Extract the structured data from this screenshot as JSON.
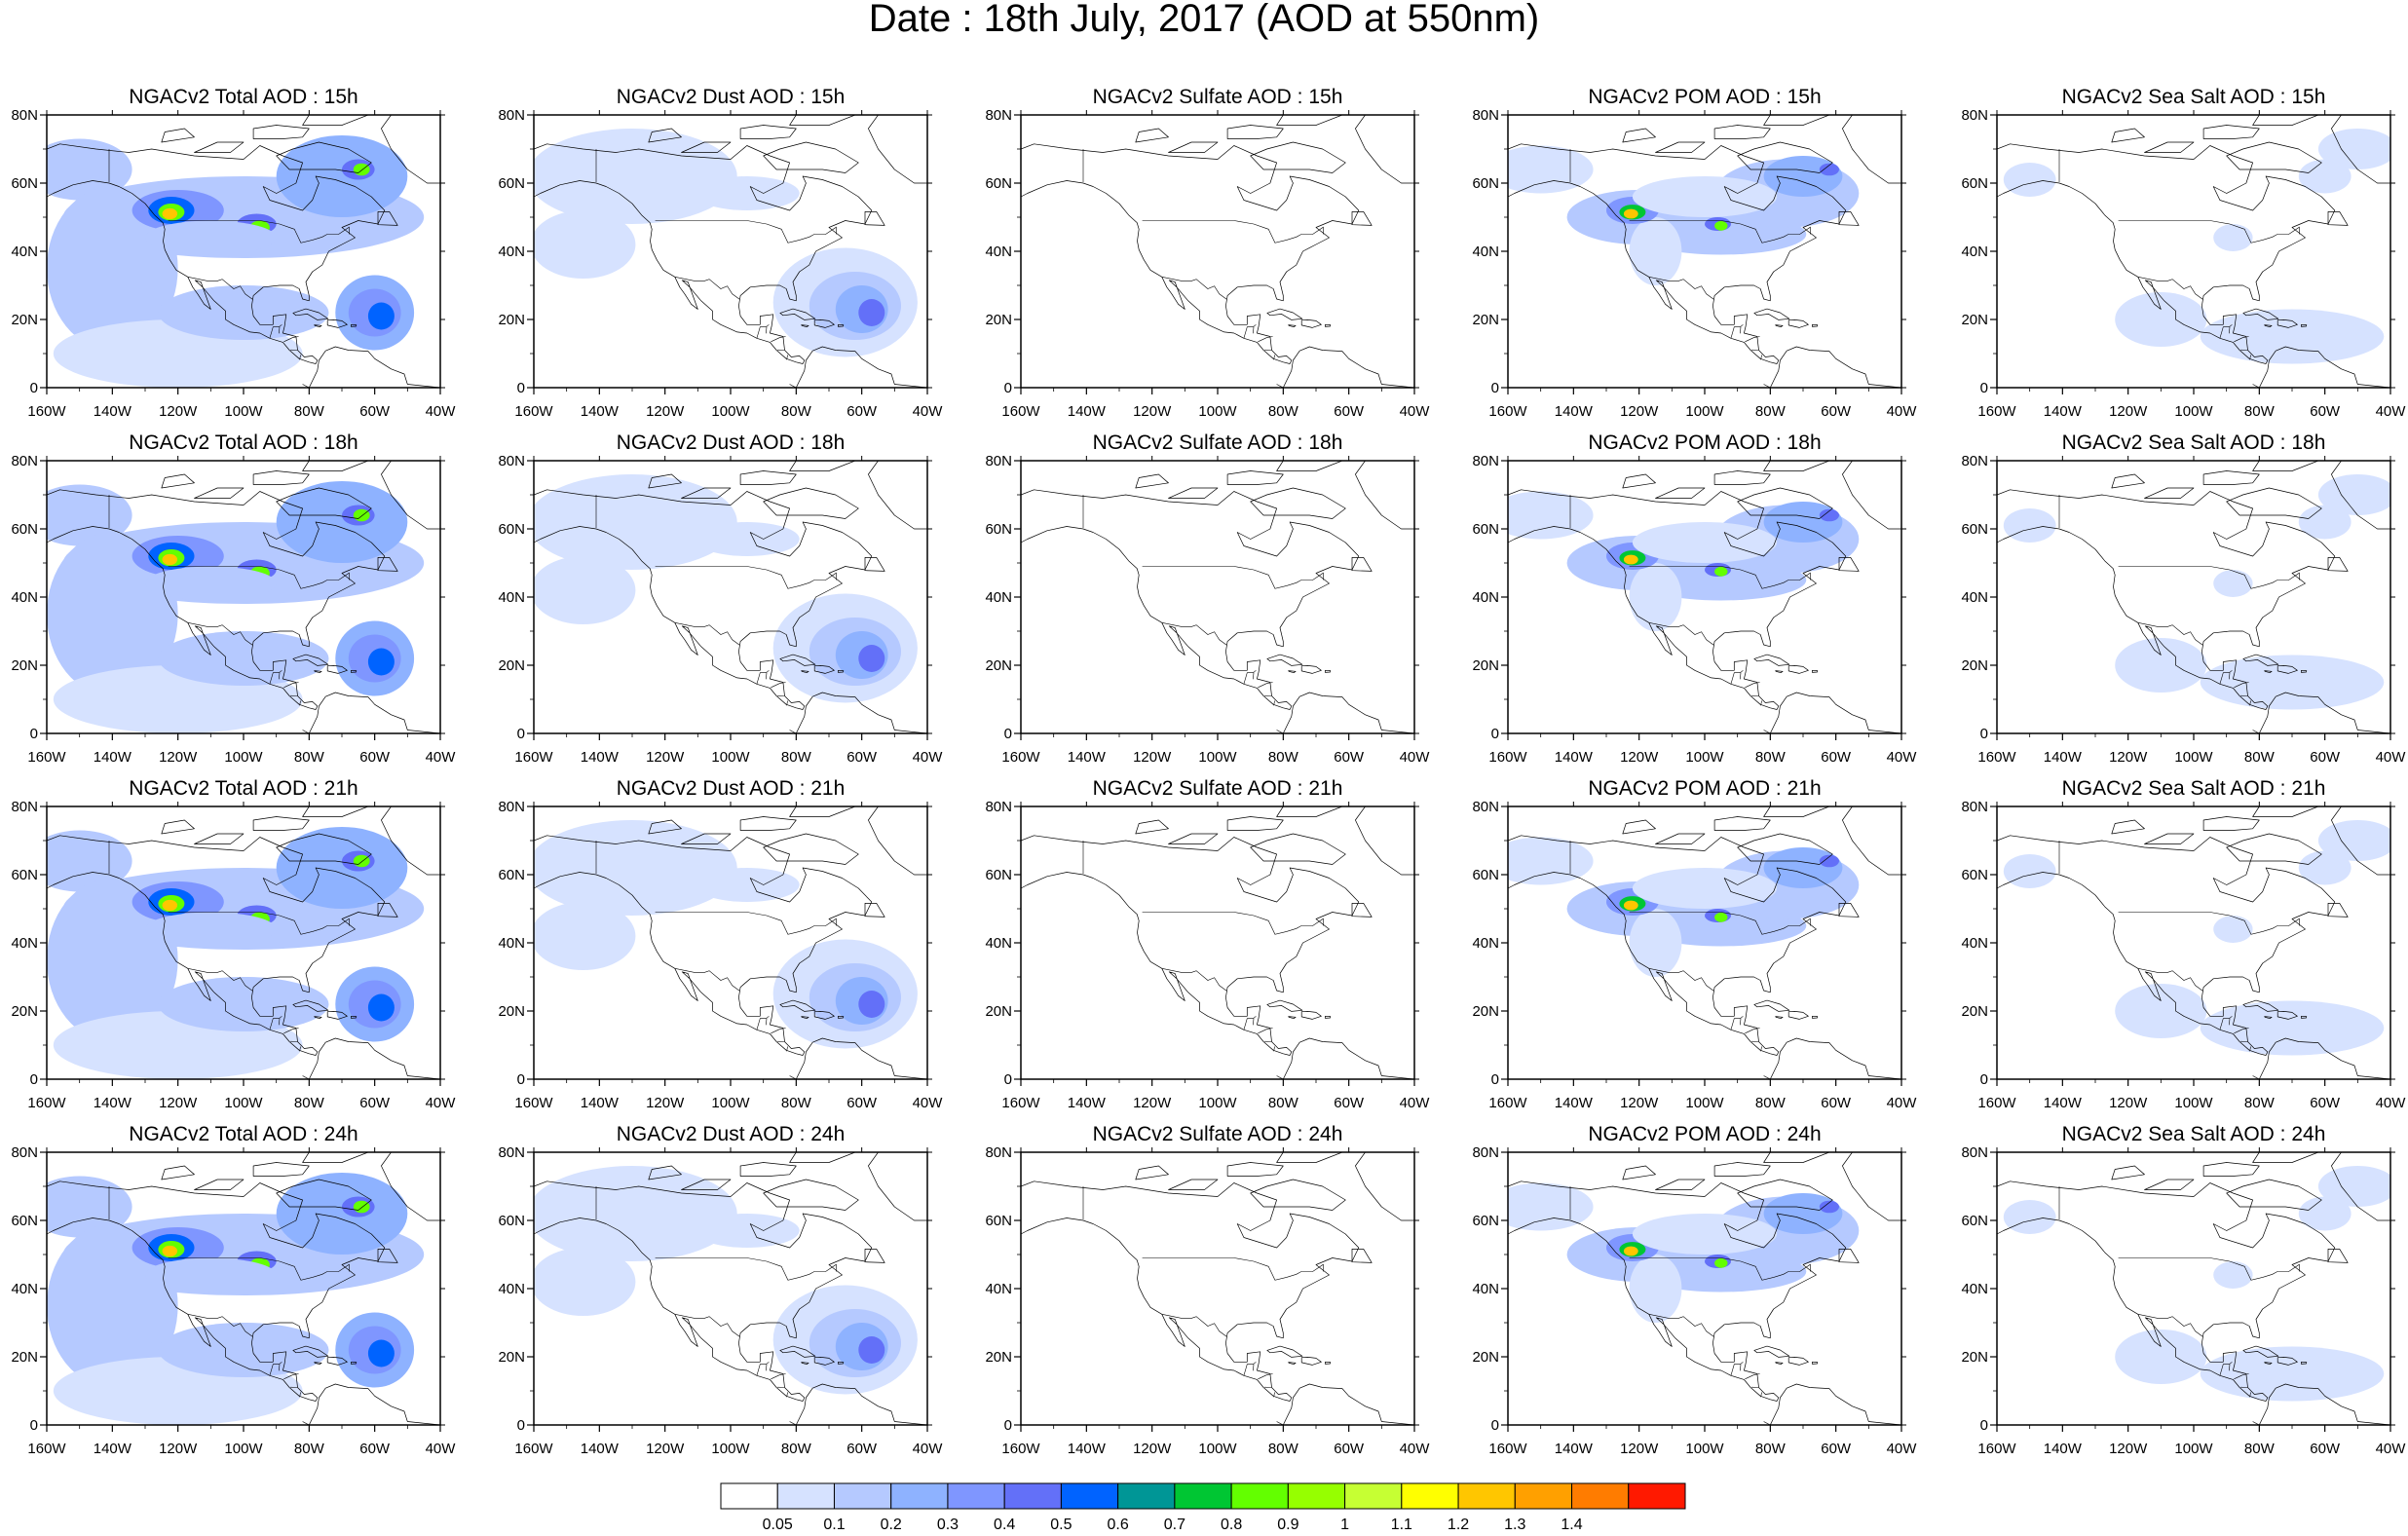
{
  "figure": {
    "title": "Date : 18th July, 2017 (AOD at 550nm)"
  },
  "axes": {
    "lat_ticks": [
      "80N",
      "60N",
      "40N",
      "20N",
      "0"
    ],
    "lon_ticks": [
      "160W",
      "140W",
      "120W",
      "100W",
      "80W",
      "60W",
      "40W"
    ],
    "lat_range": [
      0,
      80
    ],
    "lon_range": [
      -160,
      -40
    ]
  },
  "panels": [
    [
      {
        "title": "NGACv2 Total AOD : 15h",
        "species": "total",
        "hour": 15
      },
      {
        "title": "NGACv2 Dust AOD : 15h",
        "species": "dust",
        "hour": 15
      },
      {
        "title": "NGACv2 Sulfate AOD : 15h",
        "species": "sulfate",
        "hour": 15
      },
      {
        "title": "NGACv2 POM AOD : 15h",
        "species": "pom",
        "hour": 15
      },
      {
        "title": "NGACv2 Sea Salt AOD : 15h",
        "species": "seasalt",
        "hour": 15
      }
    ],
    [
      {
        "title": "NGACv2 Total AOD : 18h",
        "species": "total",
        "hour": 18
      },
      {
        "title": "NGACv2 Dust AOD : 18h",
        "species": "dust",
        "hour": 18
      },
      {
        "title": "NGACv2 Sulfate AOD : 18h",
        "species": "sulfate",
        "hour": 18
      },
      {
        "title": "NGACv2 POM AOD : 18h",
        "species": "pom",
        "hour": 18
      },
      {
        "title": "NGACv2 Sea Salt AOD : 18h",
        "species": "seasalt",
        "hour": 18
      }
    ],
    [
      {
        "title": "NGACv2 Total AOD : 21h",
        "species": "total",
        "hour": 21
      },
      {
        "title": "NGACv2 Dust AOD : 21h",
        "species": "dust",
        "hour": 21
      },
      {
        "title": "NGACv2 Sulfate AOD : 21h",
        "species": "sulfate",
        "hour": 21
      },
      {
        "title": "NGACv2 POM AOD : 21h",
        "species": "pom",
        "hour": 21
      },
      {
        "title": "NGACv2 Sea Salt AOD : 21h",
        "species": "seasalt",
        "hour": 21
      }
    ],
    [
      {
        "title": "NGACv2 Total AOD : 24h",
        "species": "total",
        "hour": 24
      },
      {
        "title": "NGACv2 Dust AOD : 24h",
        "species": "dust",
        "hour": 24
      },
      {
        "title": "NGACv2 Sulfate AOD : 24h",
        "species": "sulfate",
        "hour": 24
      },
      {
        "title": "NGACv2 POM AOD : 24h",
        "species": "pom",
        "hour": 24
      },
      {
        "title": "NGACv2 Sea Salt  AOD : 24h",
        "species": "seasalt",
        "hour": 24
      }
    ]
  ],
  "colorbar": {
    "labels": [
      "0.05",
      "0.1",
      "0.2",
      "0.3",
      "0.4",
      "0.5",
      "0.6",
      "0.7",
      "0.8",
      "0.9",
      "1",
      "1.1",
      "1.2",
      "1.3",
      "1.4"
    ],
    "colors": [
      "#ffffff",
      "#d6e2ff",
      "#b5c9ff",
      "#8eb2ff",
      "#7f96ff",
      "#6370f8",
      "#0063ff",
      "#009696",
      "#00c633",
      "#63ff00",
      "#96ff00",
      "#c6ff33",
      "#ffff00",
      "#ffc600",
      "#ffa000",
      "#ff7c00",
      "#ff1900"
    ]
  }
}
